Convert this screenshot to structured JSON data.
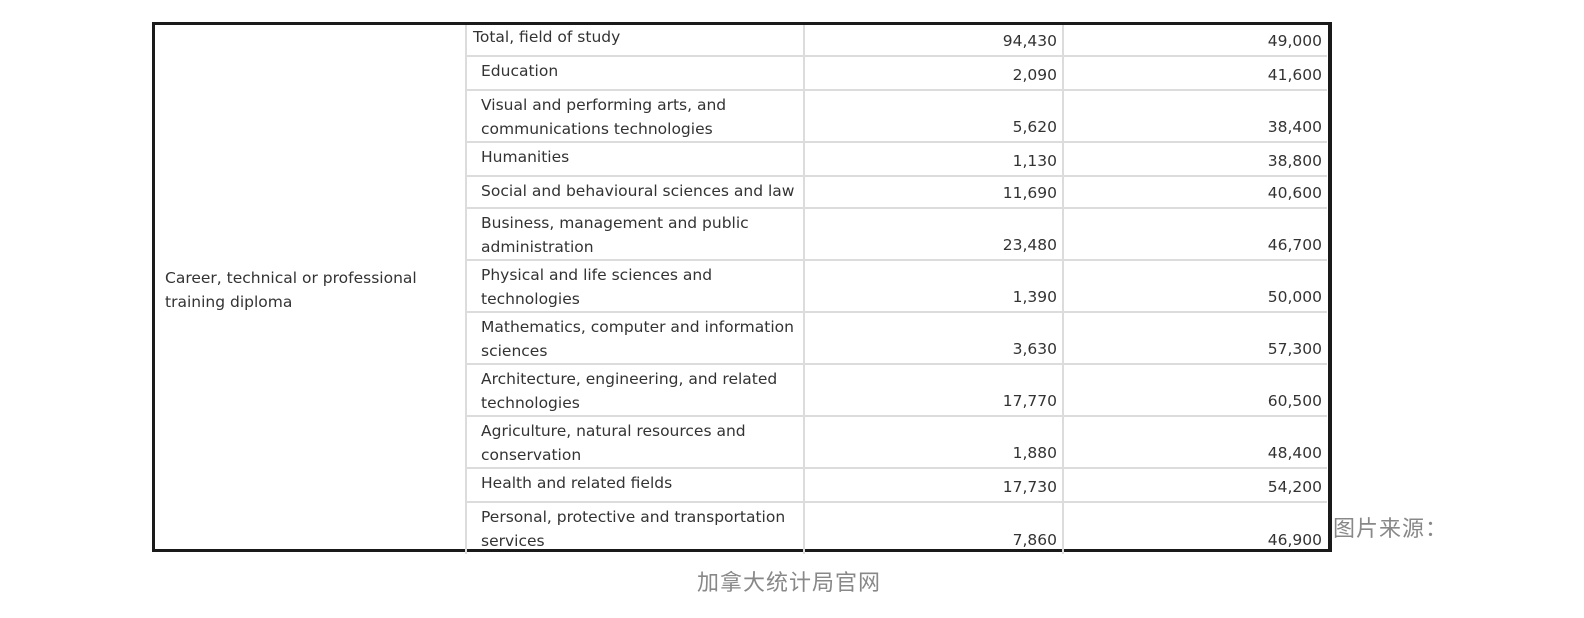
{
  "table": {
    "group_label": "Career, technical or professional training diploma",
    "rows": [
      {
        "field": "Total, field of study",
        "count": "94,430",
        "value": "49,000"
      },
      {
        "field": "Education",
        "count": "2,090",
        "value": "41,600"
      },
      {
        "field": "Visual and performing arts, and communications technologies",
        "count": "5,620",
        "value": "38,400"
      },
      {
        "field": "Humanities",
        "count": "1,130",
        "value": "38,800"
      },
      {
        "field": "Social and behavioural sciences and law",
        "count": "11,690",
        "value": "40,600"
      },
      {
        "field": "Business, management and public administration",
        "count": "23,480",
        "value": "46,700"
      },
      {
        "field": "Physical and life sciences and technologies",
        "count": "1,390",
        "value": "50,000"
      },
      {
        "field": "Mathematics, computer and information sciences",
        "count": "3,630",
        "value": "57,300"
      },
      {
        "field": "Architecture, engineering, and related technologies",
        "count": "17,770",
        "value": "60,500"
      },
      {
        "field": "Agriculture, natural resources and conservation",
        "count": "1,880",
        "value": "48,400"
      },
      {
        "field": "Health and related fields",
        "count": "17,730",
        "value": "54,200"
      },
      {
        "field": "Personal, protective and transportation services",
        "count": "7,860",
        "value": "46,900"
      }
    ]
  },
  "caption": {
    "source_prefix": "图片来源：",
    "source_name": "加拿大统计局官网"
  }
}
